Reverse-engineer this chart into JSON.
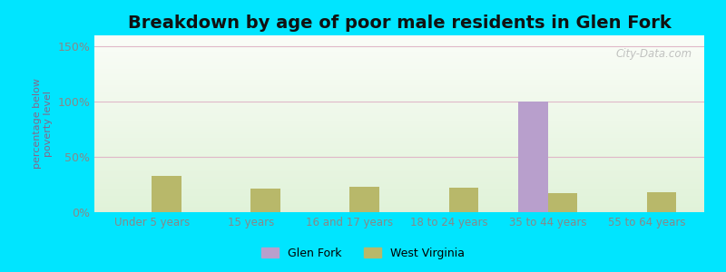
{
  "title": "Breakdown by age of poor male residents in Glen Fork",
  "ylabel": "percentage below\npoverty level",
  "categories": [
    "Under 5 years",
    "15 years",
    "16 and 17 years",
    "18 to 24 years",
    "35 to 44 years",
    "55 to 64 years"
  ],
  "glen_fork": [
    0,
    0,
    0,
    0,
    100,
    0
  ],
  "west_virginia": [
    33,
    21,
    23,
    22,
    17,
    18
  ],
  "glen_fork_color": "#b89fcc",
  "west_virginia_color": "#b8b86a",
  "background_outer": "#00e5ff",
  "ylim": [
    0,
    160
  ],
  "yticks": [
    0,
    50,
    100,
    150
  ],
  "ytick_labels": [
    "0%",
    "50%",
    "100%",
    "150%"
  ],
  "title_fontsize": 14,
  "bar_width": 0.3,
  "watermark": "City-Data.com",
  "grid_color": "#e0b8c8",
  "ylabel_color": "#886688",
  "tick_color": "#888888"
}
